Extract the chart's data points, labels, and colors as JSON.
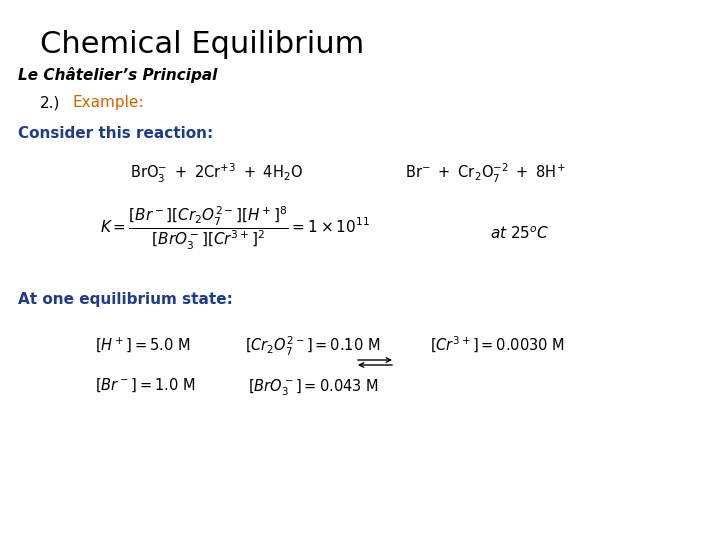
{
  "title": "Chemical Equilibrium",
  "subtitle": "Le Châtelier’s Principal",
  "point_num": "2.)",
  "point_example": "Example:",
  "consider_label": "Consider this reaction:",
  "at_eq_label": "At one equilibrium state:",
  "bg_color": "#ffffff",
  "title_color": "#000000",
  "subtitle_color": "#000000",
  "blue_color": "#1f3c88",
  "orange_color": "#cc6600",
  "title_fontsize": 22,
  "subtitle_fontsize": 11,
  "label_fontsize": 11,
  "eq_fontsize": 10.5,
  "math_fontsize": 11
}
